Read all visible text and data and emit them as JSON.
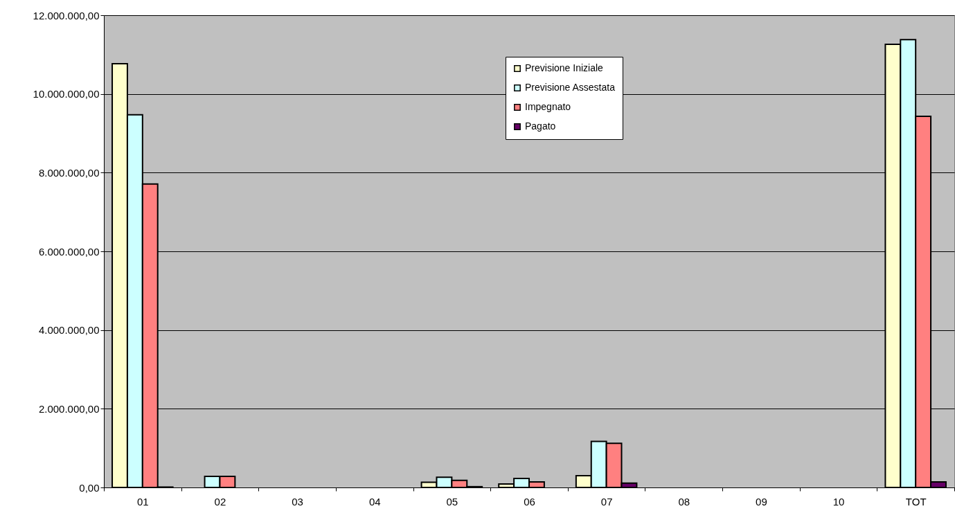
{
  "chart_data": {
    "type": "bar",
    "categories": [
      "01",
      "02",
      "03",
      "04",
      "05",
      "06",
      "07",
      "08",
      "09",
      "10",
      "TOT"
    ],
    "series": [
      {
        "name": "Previsione Iniziale",
        "color": "#ffffcc",
        "values": [
          10770000,
          null,
          null,
          null,
          130000,
          90000,
          300000,
          null,
          null,
          null,
          11260000
        ]
      },
      {
        "name": "Previsione Assestata",
        "color": "#ccffff",
        "values": [
          9470000,
          280000,
          null,
          null,
          260000,
          230000,
          1170000,
          null,
          null,
          null,
          11380000
        ]
      },
      {
        "name": "Impegnato",
        "color": "#ff8080",
        "values": [
          7710000,
          280000,
          null,
          null,
          180000,
          140000,
          1120000,
          null,
          null,
          null,
          9430000
        ]
      },
      {
        "name": "Pagato",
        "color": "#660066",
        "values": [
          10000,
          null,
          null,
          null,
          20000,
          null,
          110000,
          null,
          null,
          null,
          140000
        ]
      }
    ],
    "ylim": [
      0,
      12000000
    ],
    "yticks": [
      {
        "value": 0,
        "label": "0,00"
      },
      {
        "value": 2000000,
        "label": "2.000.000,00"
      },
      {
        "value": 4000000,
        "label": "4.000.000,00"
      },
      {
        "value": 6000000,
        "label": "6.000.000,00"
      },
      {
        "value": 8000000,
        "label": "8.000.000,00"
      },
      {
        "value": 10000000,
        "label": "10.000.000,00"
      },
      {
        "value": 12000000,
        "label": "12.000.000,00"
      }
    ],
    "grid": "y",
    "legend": "top"
  }
}
